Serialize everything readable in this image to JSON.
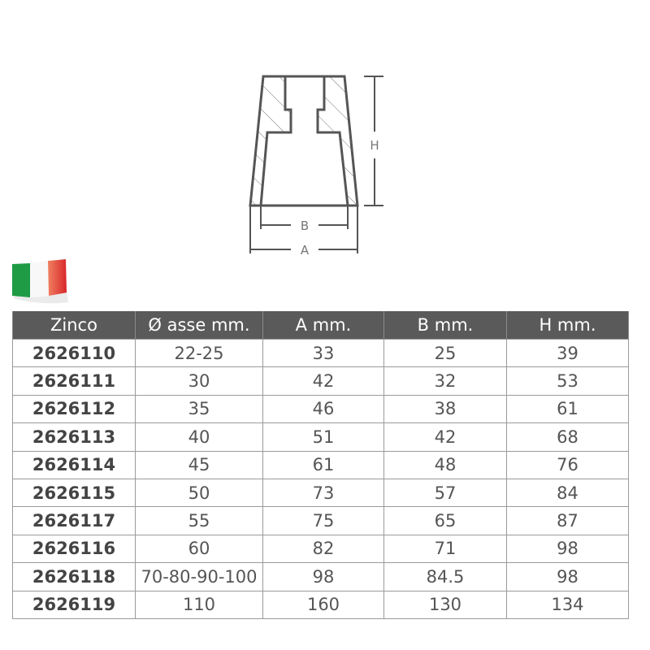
{
  "diagram": {
    "labels": {
      "h": "H",
      "b": "B",
      "a": "A"
    }
  },
  "flag": {
    "icon": "italy-flag-icon",
    "colors": [
      "#1f9a45",
      "#ffffff",
      "#e0452f"
    ]
  },
  "table": {
    "headers": [
      "Zinco",
      "Ø asse mm.",
      "A mm.",
      "B mm.",
      "H mm."
    ],
    "rows": [
      [
        "2626110",
        "22-25",
        "33",
        "25",
        "39"
      ],
      [
        "2626111",
        "30",
        "42",
        "32",
        "53"
      ],
      [
        "2626112",
        "35",
        "46",
        "38",
        "61"
      ],
      [
        "2626113",
        "40",
        "51",
        "42",
        "68"
      ],
      [
        "2626114",
        "45",
        "61",
        "48",
        "76"
      ],
      [
        "2626115",
        "50",
        "73",
        "57",
        "84"
      ],
      [
        "2626117",
        "55",
        "75",
        "65",
        "87"
      ],
      [
        "2626116",
        "60",
        "82",
        "71",
        "98"
      ],
      [
        "2626118",
        "70-80-90-100",
        "98",
        "84.5",
        "98"
      ],
      [
        "2626119",
        "110",
        "160",
        "130",
        "134"
      ]
    ]
  }
}
